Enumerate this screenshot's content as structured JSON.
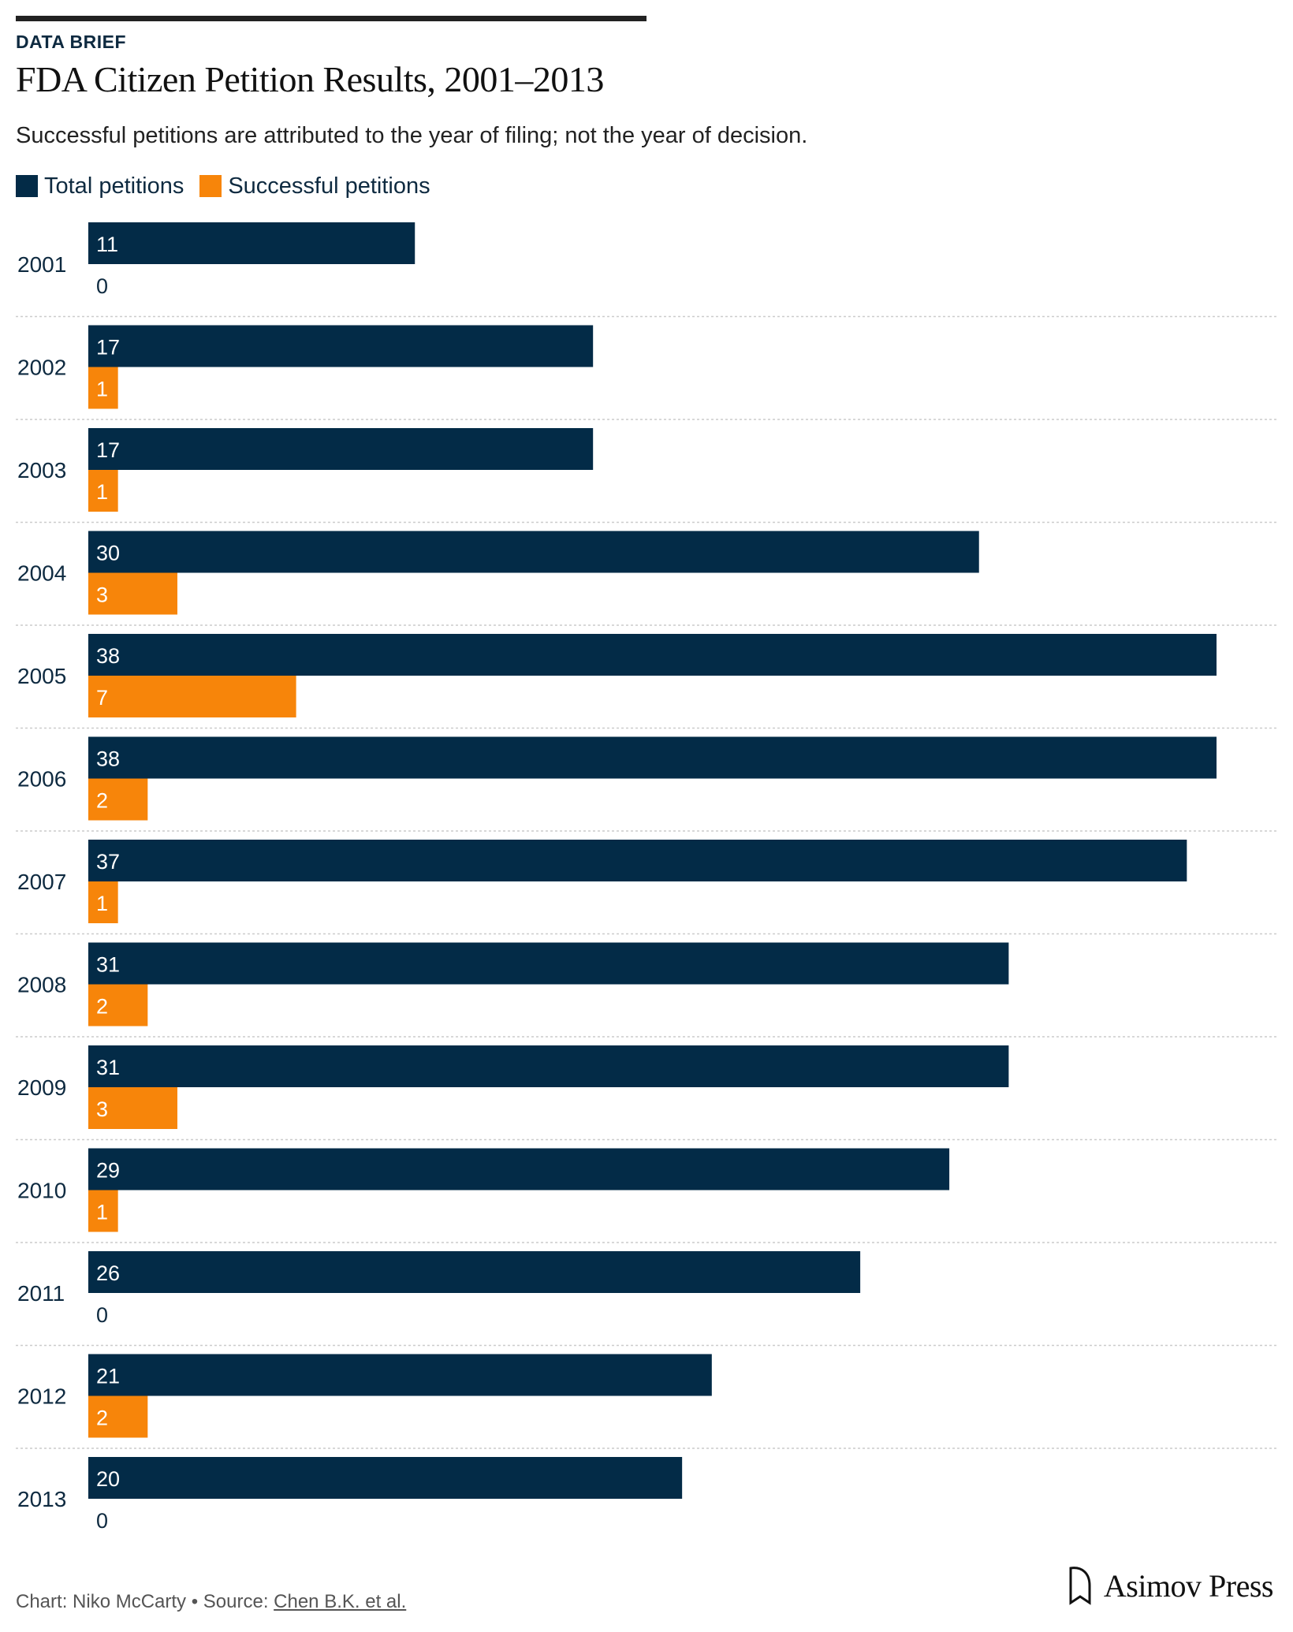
{
  "header": {
    "kicker": "DATA BRIEF",
    "title": "FDA Citizen Petition Results, 2001–2013",
    "subtitle": "Successful petitions are attributed to the year of filing; not the year of decision."
  },
  "colors": {
    "total": "#032b47",
    "successful": "#f7850a",
    "text_dark": "#0e2a40",
    "divider": "#cccccc"
  },
  "chart_data": {
    "type": "bar",
    "orientation": "horizontal",
    "categories": [
      "2001",
      "2002",
      "2003",
      "2004",
      "2005",
      "2006",
      "2007",
      "2008",
      "2009",
      "2010",
      "2011",
      "2012",
      "2013"
    ],
    "series": [
      {
        "name": "Total petitions",
        "values": [
          11,
          17,
          17,
          30,
          38,
          38,
          37,
          31,
          31,
          29,
          26,
          21,
          20
        ]
      },
      {
        "name": "Successful petitions",
        "values": [
          0,
          1,
          1,
          3,
          7,
          2,
          1,
          2,
          3,
          1,
          0,
          2,
          0
        ]
      }
    ],
    "xlim": [
      0,
      38
    ],
    "grid": false,
    "legend_position": "top-left",
    "data_labels": true
  },
  "footer": {
    "credit_prefix": "Chart: Niko McCarty • Source: ",
    "source_link": "Chen B.K. et al.",
    "brand": "Asimov Press"
  }
}
